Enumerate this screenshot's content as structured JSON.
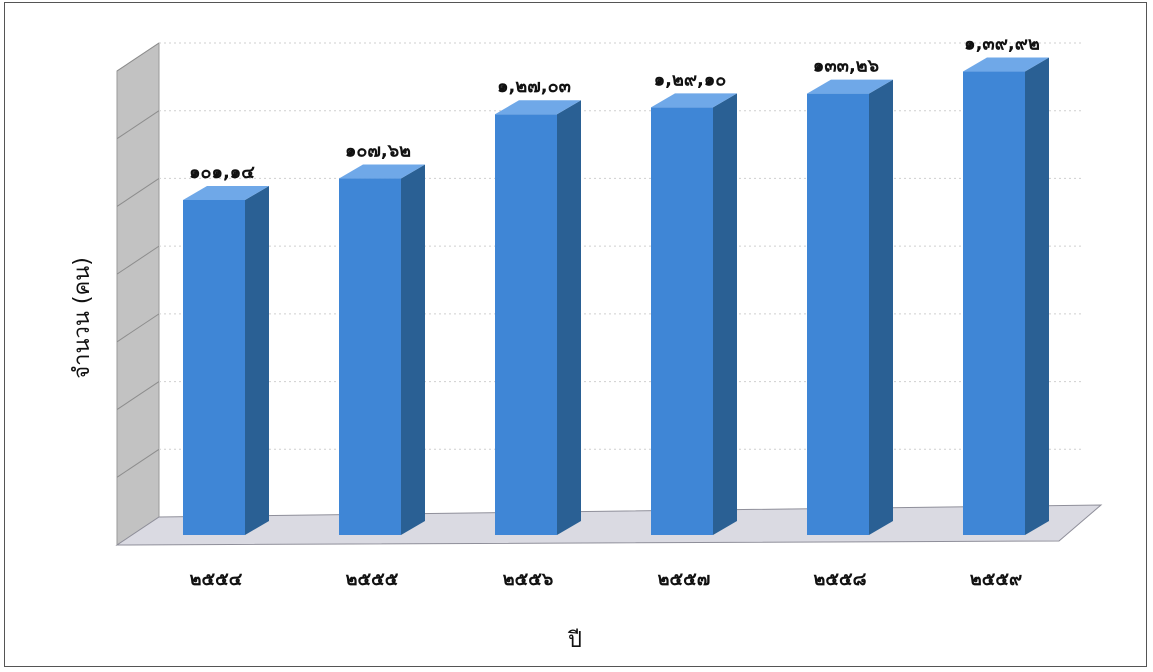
{
  "chart_data": {
    "type": "bar",
    "categories": [
      "๒๕๕๔",
      "๒๕๕๕",
      "๒๕๕๖",
      "๒๕๕๗",
      "๒๕๕๘",
      "๒๕๕๙"
    ],
    "values": [
      10114,
      10762,
      12703,
      12910,
      13326,
      13992
    ],
    "data_labels": [
      "๑๐๑,๑๔",
      "๑๐๗,๖๒",
      "๑,๒๗,๐๓",
      "๑,๒๙,๑๐",
      "๑๓๓,๒๖",
      "๑,๓๙,๙๒"
    ],
    "xlabel": "ปี",
    "ylabel": "จำนวน (คน)",
    "ylim": [
      0,
      14000
    ],
    "grid": true,
    "legend": "none",
    "colors": {
      "bar_front": "#3F86D6",
      "bar_side": "#2A6094",
      "bar_top": "#6FA8E8",
      "back_wall": "#FFFFFF",
      "side_wall": "#C2C2C2",
      "floor": "#DADAE2",
      "gridline": "#CFCFCF"
    }
  }
}
